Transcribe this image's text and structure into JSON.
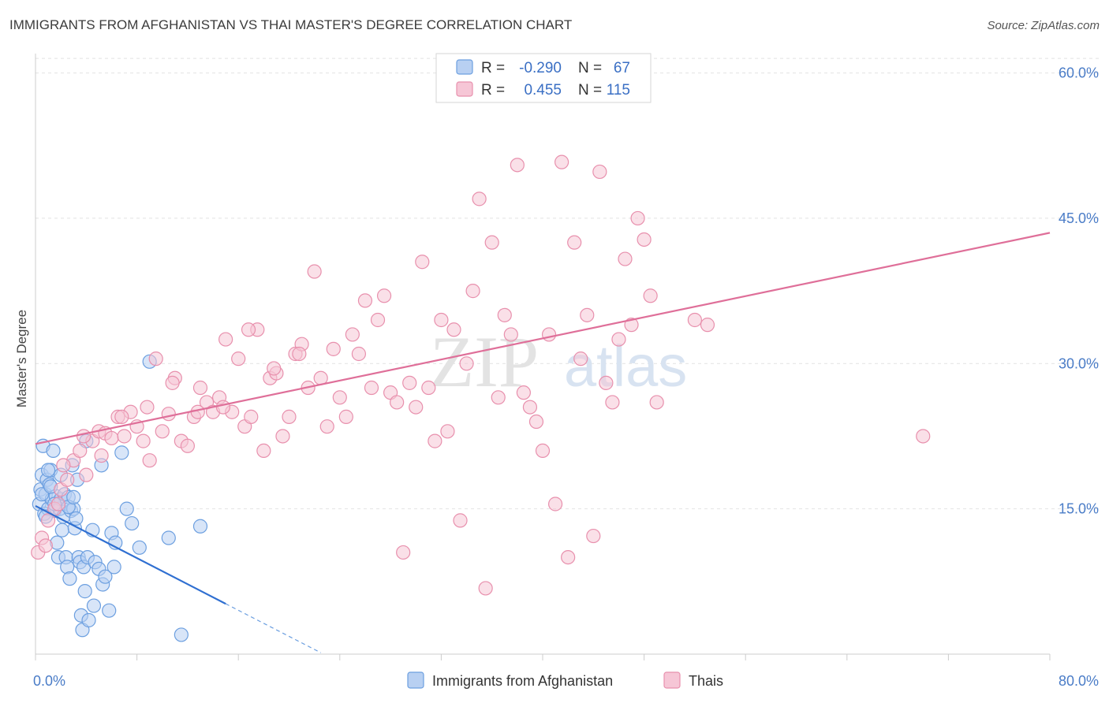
{
  "title": "IMMIGRANTS FROM AFGHANISTAN VS THAI MASTER'S DEGREE CORRELATION CHART",
  "source": "Source: ZipAtlas.com",
  "watermark": {
    "zip": "ZIP",
    "atlas": "atlas"
  },
  "chart_data": {
    "type": "scatter",
    "xlabel": "",
    "ylabel": "Master's Degree",
    "xlim": [
      0,
      80
    ],
    "ylim": [
      0,
      62
    ],
    "x_tick_labels": [
      "0.0%",
      "80.0%"
    ],
    "y_ticks": [
      15,
      30,
      45,
      60
    ],
    "y_tick_labels": [
      "15.0%",
      "30.0%",
      "45.0%",
      "60.0%"
    ],
    "legend": [
      {
        "r_label": "R =",
        "r_value": "-0.290",
        "n_label": "N =",
        "n_value": "67",
        "color": "#6c9fe0",
        "fill": "#b8d0f2"
      },
      {
        "r_label": "R =",
        "r_value": "0.455",
        "n_label": "N =",
        "n_value": "115",
        "color": "#e890ad",
        "fill": "#f6c6d6"
      }
    ],
    "series": [
      {
        "name": "Immigrants from Afghanistan",
        "color": "#6c9fe0",
        "fill": "#b8d0f2",
        "trend": {
          "x0": 0,
          "y0": 15.3,
          "x1": 15,
          "y1": 5.2,
          "dash_x1": 22.5
        },
        "points": [
          [
            0.3,
            15.5
          ],
          [
            0.4,
            17.0
          ],
          [
            0.5,
            18.5
          ],
          [
            0.6,
            21.5
          ],
          [
            0.7,
            14.5
          ],
          [
            0.8,
            16.5
          ],
          [
            0.9,
            18.0
          ],
          [
            1.0,
            15.0
          ],
          [
            1.1,
            17.5
          ],
          [
            1.2,
            19.0
          ],
          [
            1.3,
            16.0
          ],
          [
            1.4,
            21.0
          ],
          [
            1.5,
            14.8
          ],
          [
            1.6,
            16.3
          ],
          [
            1.7,
            11.5
          ],
          [
            1.8,
            10.0
          ],
          [
            1.9,
            15.0
          ],
          [
            2.0,
            16.0
          ],
          [
            2.1,
            12.8
          ],
          [
            2.2,
            14.2
          ],
          [
            2.3,
            16.5
          ],
          [
            2.4,
            10.0
          ],
          [
            2.5,
            9.0
          ],
          [
            2.6,
            16.2
          ],
          [
            2.7,
            7.8
          ],
          [
            2.8,
            14.8
          ],
          [
            2.9,
            19.5
          ],
          [
            3.0,
            15.0
          ],
          [
            3.1,
            13.0
          ],
          [
            3.2,
            14.0
          ],
          [
            3.3,
            18.0
          ],
          [
            3.4,
            10.0
          ],
          [
            3.5,
            9.5
          ],
          [
            3.6,
            4.0
          ],
          [
            3.7,
            2.5
          ],
          [
            3.8,
            9.0
          ],
          [
            3.9,
            6.5
          ],
          [
            4.0,
            22.0
          ],
          [
            4.1,
            10.0
          ],
          [
            4.2,
            3.5
          ],
          [
            4.5,
            12.8
          ],
          [
            4.6,
            5.0
          ],
          [
            4.7,
            9.5
          ],
          [
            5.0,
            8.8
          ],
          [
            5.2,
            19.5
          ],
          [
            5.3,
            7.2
          ],
          [
            5.5,
            8.0
          ],
          [
            5.8,
            4.5
          ],
          [
            6.0,
            12.5
          ],
          [
            6.2,
            9.0
          ],
          [
            6.3,
            11.5
          ],
          [
            6.8,
            20.8
          ],
          [
            7.2,
            15.0
          ],
          [
            7.6,
            13.5
          ],
          [
            8.2,
            11.0
          ],
          [
            9.0,
            30.2
          ],
          [
            10.5,
            12.0
          ],
          [
            13.0,
            13.2
          ],
          [
            11.5,
            2.0
          ],
          [
            0.5,
            16.5
          ],
          [
            1.0,
            19.0
          ],
          [
            2.0,
            18.5
          ],
          [
            1.5,
            15.5
          ],
          [
            0.8,
            14.2
          ],
          [
            1.2,
            17.3
          ],
          [
            2.6,
            15.2
          ],
          [
            3.0,
            16.2
          ]
        ]
      },
      {
        "name": "Thais",
        "color": "#e890ad",
        "fill": "#f6c6d6",
        "trend": {
          "x0": 0,
          "y0": 21.7,
          "x1": 80,
          "y1": 43.5
        },
        "points": [
          [
            0.2,
            10.5
          ],
          [
            0.5,
            12.0
          ],
          [
            1.0,
            13.8
          ],
          [
            1.5,
            15.0
          ],
          [
            2.0,
            17.0
          ],
          [
            2.5,
            18.0
          ],
          [
            3.0,
            20.0
          ],
          [
            3.5,
            21.0
          ],
          [
            4.0,
            18.5
          ],
          [
            4.5,
            22.0
          ],
          [
            5.0,
            23.0
          ],
          [
            5.5,
            22.8
          ],
          [
            6.0,
            22.3
          ],
          [
            6.5,
            24.5
          ],
          [
            7.0,
            22.5
          ],
          [
            7.5,
            25.0
          ],
          [
            8.0,
            23.5
          ],
          [
            8.5,
            22.0
          ],
          [
            9.0,
            20.0
          ],
          [
            9.5,
            30.5
          ],
          [
            10.0,
            23.0
          ],
          [
            10.5,
            24.8
          ],
          [
            11.0,
            28.5
          ],
          [
            11.5,
            22.0
          ],
          [
            12.0,
            21.5
          ],
          [
            12.5,
            24.5
          ],
          [
            13.0,
            27.5
          ],
          [
            13.5,
            26.0
          ],
          [
            14.0,
            25.0
          ],
          [
            14.5,
            26.5
          ],
          [
            15.0,
            32.5
          ],
          [
            15.5,
            25.0
          ],
          [
            16.0,
            30.5
          ],
          [
            16.5,
            23.5
          ],
          [
            17.0,
            24.5
          ],
          [
            17.5,
            33.5
          ],
          [
            18.0,
            21.0
          ],
          [
            18.5,
            28.5
          ],
          [
            19.0,
            29.0
          ],
          [
            19.5,
            22.5
          ],
          [
            20.0,
            24.5
          ],
          [
            20.5,
            31.0
          ],
          [
            21.0,
            32.0
          ],
          [
            21.5,
            27.5
          ],
          [
            22.0,
            39.5
          ],
          [
            22.5,
            28.5
          ],
          [
            23.0,
            23.5
          ],
          [
            23.5,
            31.5
          ],
          [
            24.0,
            26.5
          ],
          [
            24.5,
            24.5
          ],
          [
            25.0,
            33.0
          ],
          [
            25.5,
            31.0
          ],
          [
            26.0,
            36.5
          ],
          [
            26.5,
            27.5
          ],
          [
            27.0,
            34.5
          ],
          [
            27.5,
            37.0
          ],
          [
            28.0,
            27.0
          ],
          [
            28.5,
            26.0
          ],
          [
            29.0,
            10.5
          ],
          [
            29.5,
            28.0
          ],
          [
            30.0,
            25.5
          ],
          [
            30.5,
            40.5
          ],
          [
            31.0,
            27.5
          ],
          [
            31.5,
            22.0
          ],
          [
            32.0,
            34.5
          ],
          [
            32.5,
            23.0
          ],
          [
            33.0,
            33.5
          ],
          [
            33.5,
            13.8
          ],
          [
            34.0,
            30.0
          ],
          [
            34.5,
            37.5
          ],
          [
            35.0,
            47.0
          ],
          [
            35.5,
            6.8
          ],
          [
            36.0,
            42.5
          ],
          [
            36.5,
            26.5
          ],
          [
            37.0,
            35.0
          ],
          [
            37.5,
            33.0
          ],
          [
            38.0,
            50.5
          ],
          [
            38.5,
            27.0
          ],
          [
            39.0,
            25.5
          ],
          [
            39.5,
            24.0
          ],
          [
            40.0,
            21.0
          ],
          [
            40.5,
            33.0
          ],
          [
            41.0,
            15.5
          ],
          [
            41.5,
            50.8
          ],
          [
            42.0,
            10.0
          ],
          [
            42.5,
            42.5
          ],
          [
            43.0,
            30.5
          ],
          [
            43.5,
            35.0
          ],
          [
            44.0,
            12.2
          ],
          [
            44.5,
            49.8
          ],
          [
            45.0,
            28.0
          ],
          [
            45.5,
            26.0
          ],
          [
            46.0,
            32.5
          ],
          [
            46.5,
            40.8
          ],
          [
            47.0,
            34.0
          ],
          [
            47.5,
            45.0
          ],
          [
            48.0,
            42.8
          ],
          [
            48.5,
            37.0
          ],
          [
            49.0,
            26.0
          ],
          [
            52.0,
            34.5
          ],
          [
            53.0,
            34.0
          ],
          [
            70.0,
            22.5
          ],
          [
            0.8,
            11.2
          ],
          [
            1.8,
            15.5
          ],
          [
            2.2,
            19.5
          ],
          [
            3.8,
            22.5
          ],
          [
            5.2,
            20.5
          ],
          [
            6.8,
            24.5
          ],
          [
            8.8,
            25.5
          ],
          [
            10.8,
            28.0
          ],
          [
            12.8,
            25.0
          ],
          [
            14.8,
            25.5
          ],
          [
            16.8,
            33.5
          ],
          [
            18.8,
            29.5
          ],
          [
            20.8,
            31.0
          ]
        ]
      }
    ]
  },
  "bottom_legend": [
    "Immigrants from Afghanistan",
    "Thais"
  ]
}
